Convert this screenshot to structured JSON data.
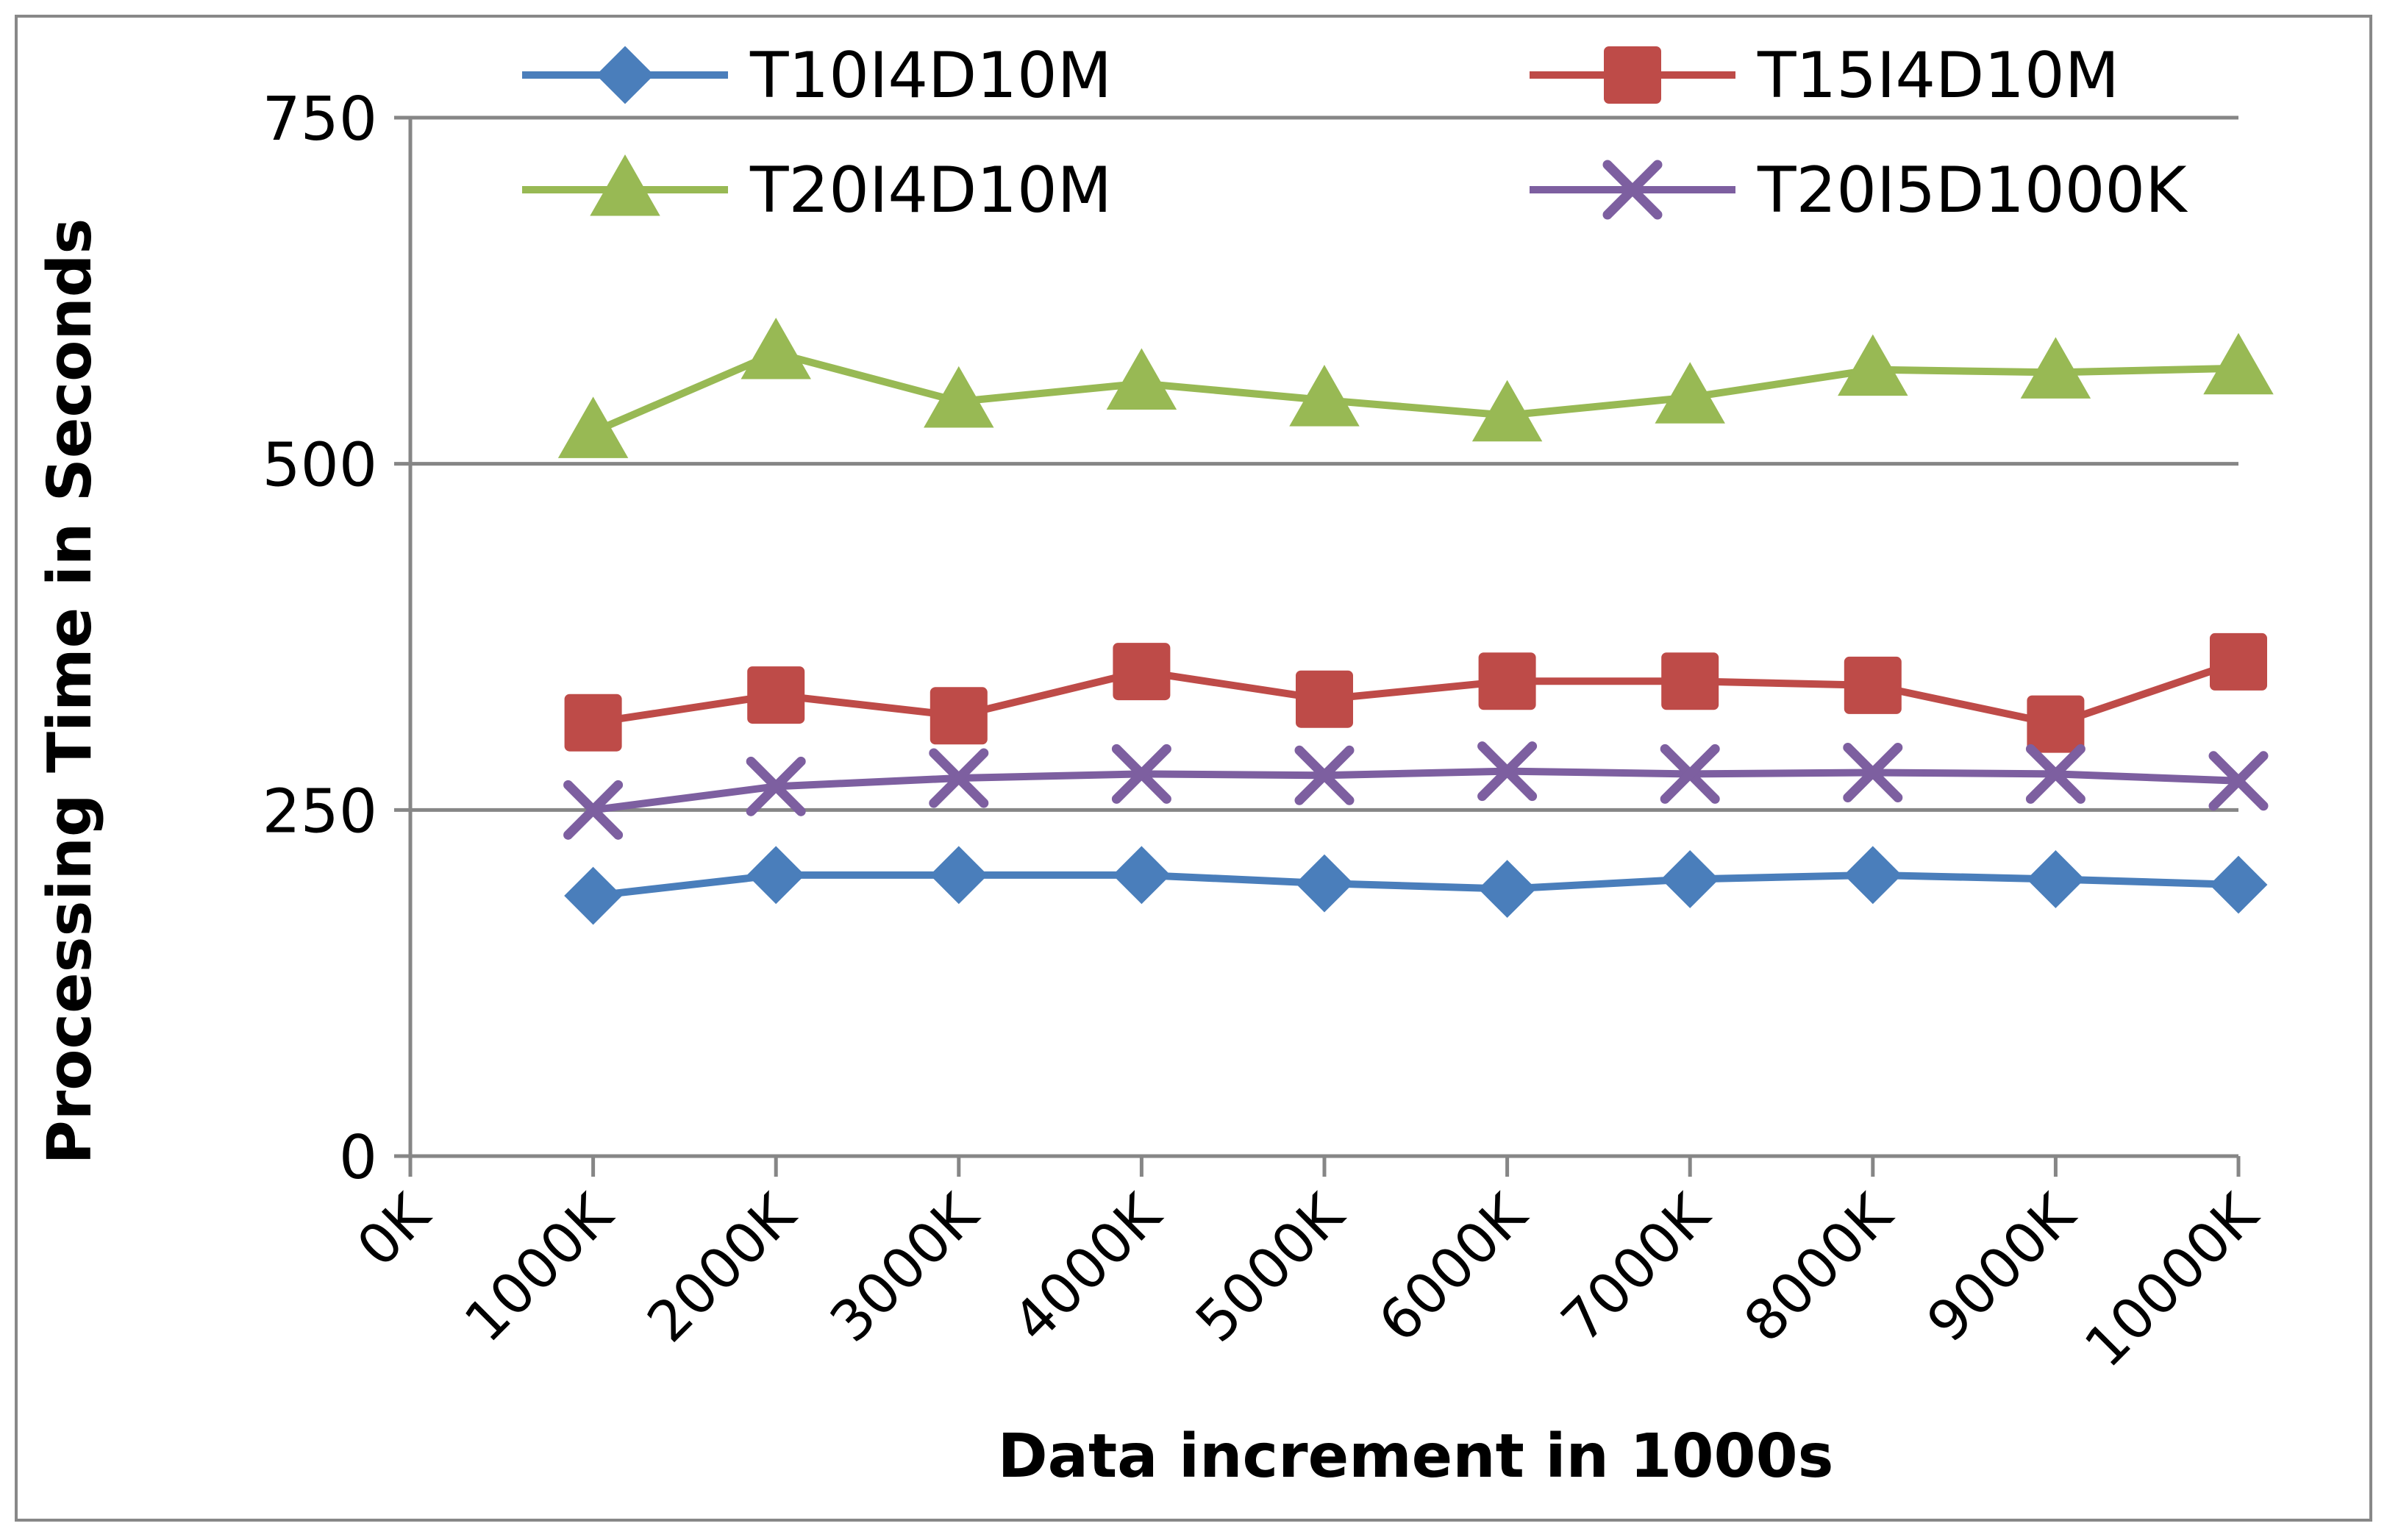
{
  "chart_data": {
    "type": "line",
    "title": "",
    "xlabel": "Data increment in 1000s",
    "ylabel": "Processing Time in Seconds",
    "categories": [
      "0K",
      "1000K",
      "2000K",
      "3000K",
      "4000K",
      "5000K",
      "6000K",
      "7000K",
      "8000K",
      "9000K",
      "10000K"
    ],
    "ylim": [
      0,
      750
    ],
    "yticks": [
      "0",
      "250",
      "500",
      "750"
    ],
    "ytick_values": [
      0,
      250,
      500,
      750
    ],
    "grid": true,
    "legend_position": "top",
    "series": [
      {
        "name": "T10I4D10M",
        "color": "#4a7ebb",
        "marker": "diamond",
        "values": [
          null,
          188,
          203,
          203,
          203,
          197,
          193,
          200,
          203,
          200,
          196
        ]
      },
      {
        "name": "T15I4D10M",
        "color": "#be4b48",
        "marker": "square",
        "values": [
          null,
          313,
          333,
          318,
          350,
          330,
          343,
          343,
          340,
          312,
          357
        ]
      },
      {
        "name": "T20I4D10M",
        "color": "#98b954",
        "marker": "triangle",
        "values": [
          null,
          523,
          580,
          545,
          558,
          546,
          535,
          548,
          568,
          566,
          569
        ]
      },
      {
        "name": "T20I5D1000K",
        "color": "#7d5fa0",
        "marker": "x",
        "values": [
          null,
          250,
          267,
          273,
          276,
          275,
          278,
          276,
          277,
          276,
          271
        ]
      }
    ]
  }
}
